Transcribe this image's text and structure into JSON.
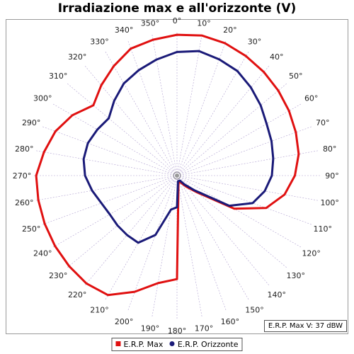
{
  "chart_data": {
    "type": "polar-line",
    "title": "Irradiazione max e all'orizzonte (V)",
    "angle_ticks": [
      "0°",
      "10°",
      "20°",
      "30°",
      "40°",
      "50°",
      "60°",
      "70°",
      "80°",
      "90°",
      "100°",
      "110°",
      "120°",
      "130°",
      "140°",
      "150°",
      "160°",
      "170°",
      "180°",
      "190°",
      "200°",
      "210°",
      "220°",
      "230°",
      "240°",
      "250°",
      "260°",
      "270°",
      "280°",
      "290°",
      "300°",
      "310°",
      "320°",
      "330°",
      "340°",
      "350°"
    ],
    "angles_deg": [
      0,
      10,
      20,
      30,
      40,
      50,
      60,
      70,
      80,
      90,
      100,
      110,
      120,
      130,
      140,
      150,
      160,
      170,
      180,
      190,
      200,
      210,
      220,
      230,
      240,
      250,
      260,
      270,
      280,
      290,
      300,
      310,
      320,
      330,
      340,
      350
    ],
    "r_max": 1.0,
    "grid": true,
    "legend_position": "bottom",
    "series": [
      {
        "name": "E.R.P. Max",
        "color": "#e01010",
        "values": [
          0.98,
          0.99,
          0.98,
          0.96,
          0.94,
          0.92,
          0.9,
          0.88,
          0.86,
          0.82,
          0.76,
          0.66,
          0.46,
          0.18,
          0.1,
          0.06,
          0.04,
          0.06,
          0.72,
          0.76,
          0.86,
          0.96,
          0.98,
          0.98,
          0.98,
          0.98,
          0.98,
          0.98,
          0.94,
          0.9,
          0.84,
          0.76,
          0.82,
          0.88,
          0.94,
          0.96
        ]
      },
      {
        "name": "E.R.P. Orizzonte",
        "color": "#1a1a78",
        "values": [
          0.86,
          0.88,
          0.86,
          0.84,
          0.8,
          0.76,
          0.72,
          0.7,
          0.68,
          0.66,
          0.62,
          0.56,
          0.42,
          0.16,
          0.08,
          0.04,
          0.04,
          0.04,
          0.22,
          0.24,
          0.44,
          0.54,
          0.54,
          0.54,
          0.54,
          0.56,
          0.6,
          0.64,
          0.66,
          0.66,
          0.64,
          0.62,
          0.68,
          0.74,
          0.78,
          0.82
        ]
      }
    ]
  },
  "note": "E.R.P. Max V: 37 dBW"
}
